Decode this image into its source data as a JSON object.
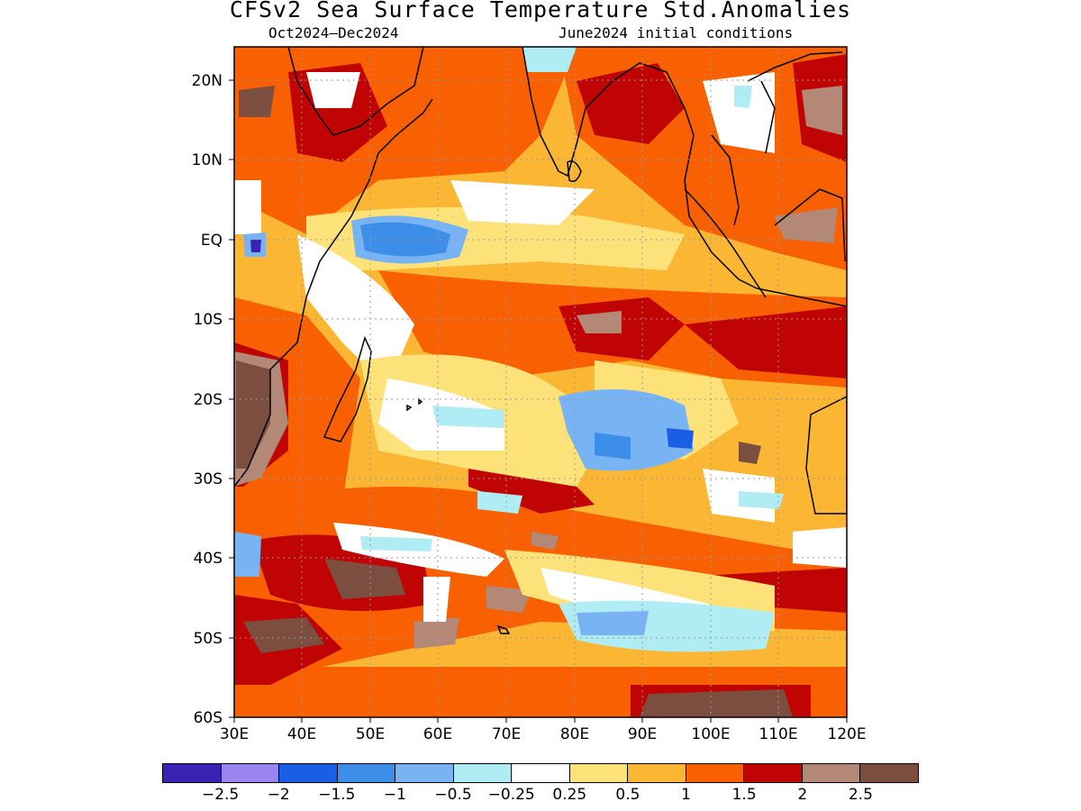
{
  "title": "CFSv2 Sea Surface Temperature Std.Anomalies",
  "subtitle_left": "Oct2024–Dec2024",
  "subtitle_right": "June2024 initial conditions",
  "map": {
    "lon_range": [
      30,
      120
    ],
    "lat_range": [
      -60,
      24
    ],
    "lon_ticks": [
      "30E",
      "40E",
      "50E",
      "60E",
      "70E",
      "80E",
      "90E",
      "100E",
      "110E",
      "120E"
    ],
    "lat_ticks": [
      "20N",
      "10N",
      "EQ",
      "10S",
      "20S",
      "30S",
      "40S",
      "50S",
      "60S"
    ],
    "grid_lines": "dotted",
    "coastline_color": "#000000"
  },
  "legend": {
    "colors": [
      "#3a22b4",
      "#9a84f0",
      "#1a5ee6",
      "#3c8ee8",
      "#78b4f4",
      "#b0ecf4",
      "#ffffff",
      "#fde27a",
      "#fbb734",
      "#f86002",
      "#c00404",
      "#b48876",
      "#7c4e40"
    ],
    "labels": [
      "−2.5",
      "−2",
      "−1.5",
      "−1",
      "−0.5",
      "−0.25",
      "0.25",
      "0.5",
      "1",
      "1.5",
      "2",
      "2.5"
    ]
  }
}
